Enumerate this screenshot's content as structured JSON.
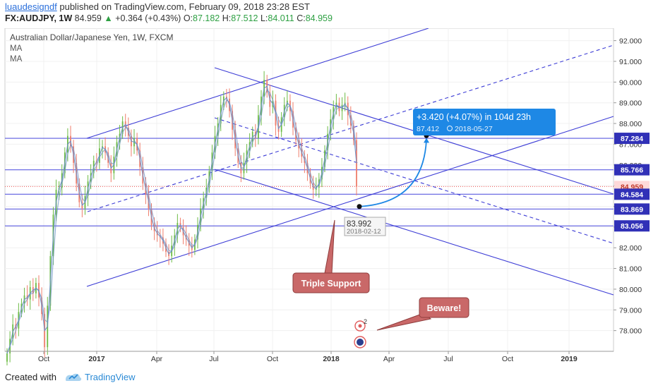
{
  "header": {
    "author": "luaudesigndf",
    "published_text": "published on TradingView.com, February 09, 2018 23:28 EST",
    "symbol": "FX:AUDJPY, 1W",
    "last": "84.959",
    "change": "+0.364 (+0.43%)",
    "o_label": "O:",
    "o_value": "87.182",
    "h_label": "H:",
    "h_value": "87.512",
    "l_label": "L:",
    "l_value": "84.011",
    "c_label": "C:",
    "c_value": "84.959"
  },
  "legend": {
    "title": "Australian Dollar/Japanese Yen, 1W, FXCM",
    "indicators": [
      "MA",
      "MA"
    ]
  },
  "colors": {
    "up_candle": "#6dbb45",
    "down_candle": "#ef7d6b",
    "ma_line": "#6a8fc7",
    "channel": "#3d3dd6",
    "hline": "#5b5be0",
    "price_line": "#ef5350",
    "projection": "#1e88e5",
    "callout_bg": "#c96868"
  },
  "chart_data": {
    "type": "candlestick",
    "title": "Australian Dollar/Japanese Yen, 1W, FXCM",
    "ylim": [
      77.0,
      92.6
    ],
    "y_ticks": [
      "78.000",
      "79.000",
      "80.000",
      "81.000",
      "82.000",
      "83.000",
      "84.000",
      "85.000",
      "86.000",
      "87.000",
      "88.000",
      "89.000",
      "90.000",
      "91.000",
      "92.000"
    ],
    "x_ticks": [
      "Oct",
      "2017",
      "Apr",
      "Jul",
      "Oct",
      "2018",
      "Apr",
      "Jul",
      "Oct",
      "2019"
    ],
    "x_ticks_bold": [
      "2017",
      "2018",
      "2019"
    ],
    "price_labels": [
      {
        "value": "87.284",
        "price": 87.284,
        "highlight": true
      },
      {
        "value": "85.766",
        "price": 85.766,
        "highlight": true
      },
      {
        "value": "84.959",
        "price": 84.959,
        "highlight": false
      },
      {
        "value": "84.584",
        "price": 84.584,
        "highlight": true
      },
      {
        "value": "83.869",
        "price": 83.869,
        "highlight": true
      },
      {
        "value": "83.056",
        "price": 83.056,
        "highlight": true
      }
    ],
    "horizontal_levels": [
      87.284,
      85.766,
      84.584,
      83.869,
      83.056
    ],
    "last_price": 84.959,
    "closes": [
      76.9,
      77.6,
      78.3,
      78.1,
      78.9,
      79.3,
      79.7,
      79.5,
      80.1,
      79.8,
      80.3,
      79.6,
      78.8,
      77.2,
      79.2,
      81.6,
      83.6,
      84.8,
      84.9,
      85.6,
      86.6,
      87.4,
      86.9,
      86.1,
      85.1,
      84.2,
      83.9,
      84.5,
      85.2,
      85.6,
      86.2,
      86.1,
      86.8,
      86.9,
      86.6,
      86.1,
      85.6,
      86.4,
      87.1,
      87.5,
      88.1,
      87.8,
      87.4,
      86.9,
      87.3,
      86.7,
      85.9,
      85.1,
      84.6,
      83.9,
      83.1,
      82.8,
      82.6,
      82.5,
      82.2,
      81.8,
      81.6,
      82.1,
      82.6,
      83.2,
      83.0,
      82.6,
      82.4,
      82.1,
      81.9,
      82.4,
      83.1,
      83.9,
      84.4,
      84.9,
      85.7,
      86.6,
      87.4,
      88.0,
      88.9,
      89.3,
      89.2,
      88.6,
      87.7,
      86.8,
      86.1,
      85.6,
      86.1,
      86.7,
      87.1,
      87.6,
      87.3,
      88.4,
      89.3,
      90.1,
      89.5,
      88.8,
      89.1,
      87.9,
      87.6,
      88.3,
      88.9,
      89.1,
      88.6,
      87.8,
      87.2,
      86.8,
      86.4,
      86.1,
      85.6,
      85.1,
      84.8,
      84.9,
      85.3,
      85.9,
      86.7,
      87.5,
      88.2,
      88.8,
      89.0,
      88.6,
      88.9,
      89.0,
      88.4,
      87.9,
      87.2,
      84.959
    ],
    "annotation": {
      "projection_text": "+3.420 (+4.07%) in 104d 23h",
      "projection_sub_price": "87.412",
      "projection_sub_date": "2018-05-27",
      "start_price": "83.992",
      "start_date": "2018-02-12"
    },
    "callouts": [
      "Triple Support",
      "Beware!"
    ],
    "event_badge": "2"
  },
  "footer": {
    "created_with": "Created with",
    "brand": "TradingView"
  }
}
